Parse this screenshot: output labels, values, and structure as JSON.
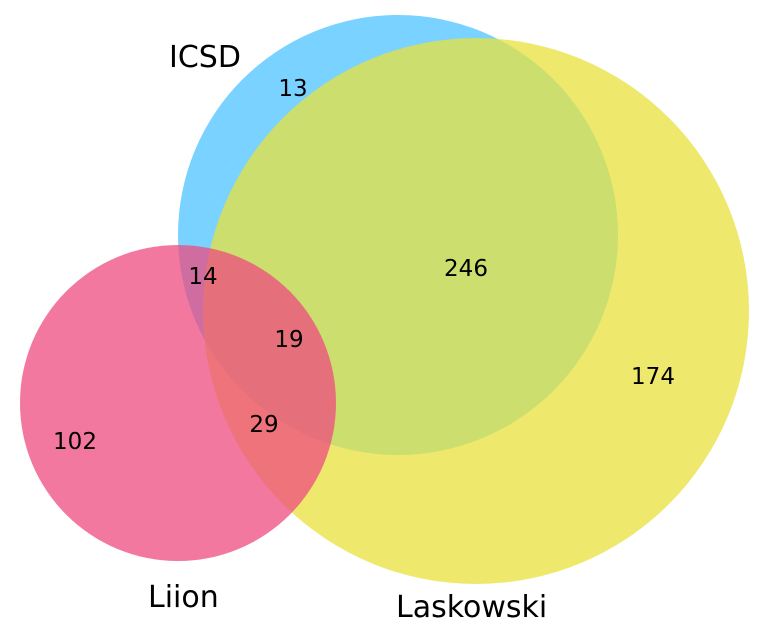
{
  "sets": {
    "icsd": {
      "label": "ICSD",
      "color": "#4cc3ff"
    },
    "laskowski": {
      "label": "Laskowski",
      "color": "#e8e23c"
    },
    "liion": {
      "label": "Liion",
      "color": "#ee4b80"
    }
  },
  "regions": {
    "icsd_only": "13",
    "icsd_liion": "14",
    "icsd_laskowski": "246",
    "all_three": "19",
    "laskowski_only": "174",
    "laskowski_liion": "29",
    "liion_only": "102"
  }
}
